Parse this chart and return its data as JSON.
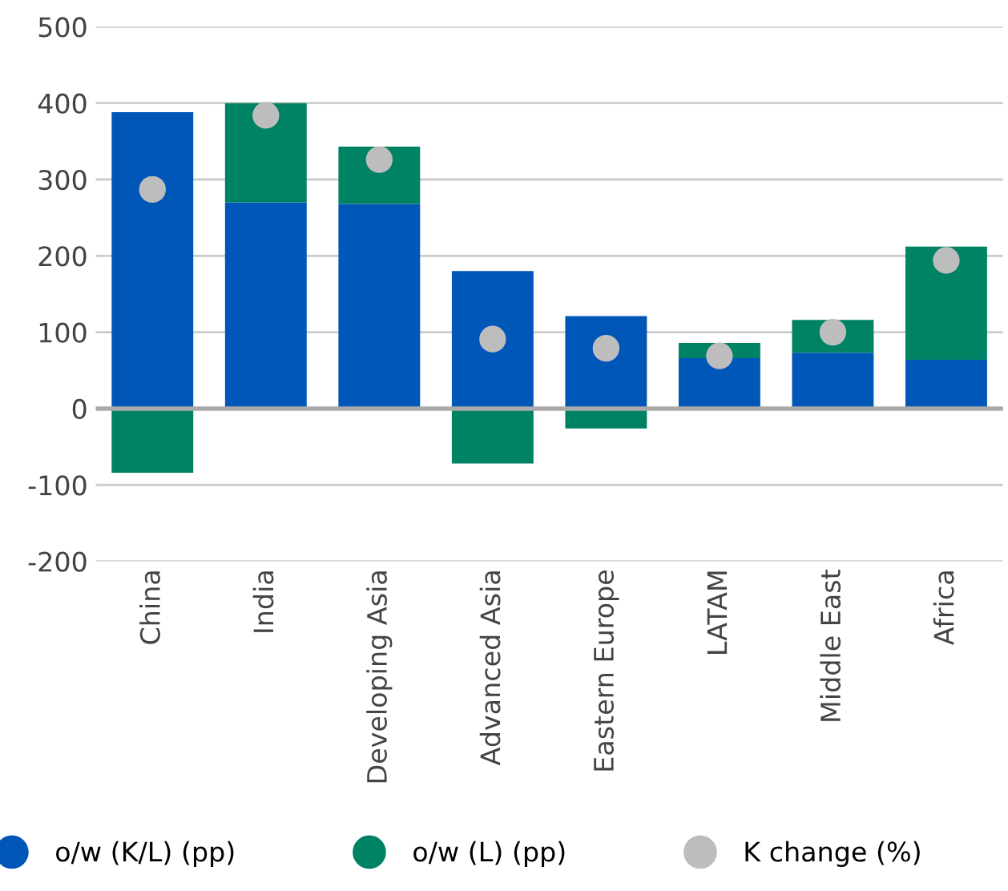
{
  "chart_data": {
    "type": "bar",
    "stacked": true,
    "categories": [
      "China",
      "India",
      "Developing Asia",
      "Advanced Asia",
      "Eastern Europe",
      "LATAM",
      "Middle East",
      "Africa"
    ],
    "series": [
      {
        "name": "o/w (K/L) (pp)",
        "color": "#0057b8",
        "values": [
          388,
          270,
          268,
          180,
          121,
          66,
          73,
          64
        ]
      },
      {
        "name": "o/w (L) (pp)",
        "color": "#008264",
        "values": [
          -84,
          130,
          75,
          -72,
          -26,
          20,
          43,
          148
        ]
      },
      {
        "name": "K change (%)",
        "type": "scatter",
        "color": "#bdbdbd",
        "values": [
          287,
          384,
          326,
          91,
          79,
          69,
          100,
          194
        ]
      }
    ],
    "ylim": [
      -200,
      500
    ],
    "yticks": [
      -200,
      -100,
      0,
      100,
      200,
      300,
      400,
      500
    ],
    "ref_lines": [
      {
        "axis": "y",
        "value": 0,
        "color": "#aaaaaa"
      }
    ],
    "grid": "y",
    "legend": "bottom",
    "marker": "circle"
  }
}
